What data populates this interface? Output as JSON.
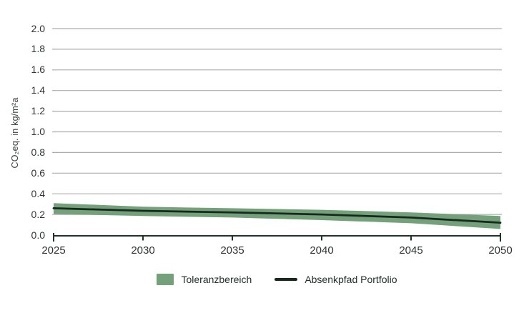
{
  "chart_data": {
    "type": "line",
    "title": "",
    "xlabel": "",
    "ylabel": "CO₂eq. in kg/m²a",
    "xlim": [
      2025,
      2050
    ],
    "ylim": [
      0.0,
      2.0
    ],
    "xticks": [
      2025,
      2030,
      2035,
      2040,
      2045,
      2050
    ],
    "yticks": [
      0.0,
      0.2,
      0.4,
      0.6,
      0.8,
      1.0,
      1.2,
      1.4,
      1.6,
      1.8,
      2.0
    ],
    "grid": "horizontal",
    "legend_position": "bottom-center",
    "x": [
      2025,
      2030,
      2035,
      2040,
      2045,
      2050
    ],
    "series": [
      {
        "name": "Toleranzbereich",
        "type": "band",
        "low": [
          0.205,
          0.185,
          0.17,
          0.145,
          0.115,
          0.06
        ],
        "high": [
          0.31,
          0.275,
          0.26,
          0.245,
          0.22,
          0.185
        ]
      },
      {
        "name": "Absenkpfad Portfolio",
        "type": "line",
        "values": [
          0.26,
          0.235,
          0.22,
          0.2,
          0.17,
          0.12
        ]
      }
    ]
  },
  "legend": {
    "items": [
      {
        "label": "Toleranzbereich",
        "swatch": "band-swatch"
      },
      {
        "label": "Absenkpfad Portfolio",
        "swatch": "line-swatch"
      }
    ]
  },
  "colors": {
    "band": "#74A17A",
    "line": "#17291F",
    "axis": "#1F3329",
    "grid": "#ADADAD",
    "tick_text": "#2F3430"
  }
}
